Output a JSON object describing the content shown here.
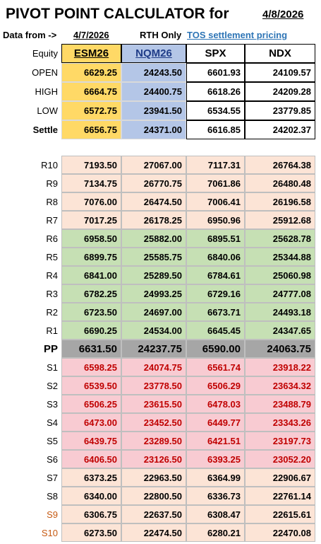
{
  "header": {
    "title": "PIVOT POINT CALCULATOR for",
    "date": "4/8/2026"
  },
  "info": {
    "label": "Data from ->",
    "date": "4/7/2026",
    "session": "RTH Only",
    "source": "TOS settlement pricing"
  },
  "table": {
    "columns": [
      "Equity",
      "ESM26",
      "NQM26",
      "SPX",
      "NDX"
    ],
    "quotes": [
      [
        "OPEN",
        "6629.25",
        "24243.50",
        "6601.93",
        "24109.57"
      ],
      [
        "HIGH",
        "6664.75",
        "24400.75",
        "6618.26",
        "24209.28"
      ],
      [
        "LOW",
        "6572.75",
        "23941.50",
        "6534.55",
        "23779.85"
      ],
      [
        "Settle",
        "6656.75",
        "24371.00",
        "6616.85",
        "24202.37"
      ]
    ],
    "levels": [
      [
        "R10",
        "7193.50",
        "27067.00",
        "7117.31",
        "26764.38"
      ],
      [
        "R9",
        "7134.75",
        "26770.75",
        "7061.86",
        "26480.48"
      ],
      [
        "R8",
        "7076.00",
        "26474.50",
        "7006.41",
        "26196.58"
      ],
      [
        "R7",
        "7017.25",
        "26178.25",
        "6950.96",
        "25912.68"
      ],
      [
        "R6",
        "6958.50",
        "25882.00",
        "6895.51",
        "25628.78"
      ],
      [
        "R5",
        "6899.75",
        "25585.75",
        "6840.06",
        "25344.88"
      ],
      [
        "R4",
        "6841.00",
        "25289.50",
        "6784.61",
        "25060.98"
      ],
      [
        "R3",
        "6782.25",
        "24993.25",
        "6729.16",
        "24777.08"
      ],
      [
        "R2",
        "6723.50",
        "24697.00",
        "6673.71",
        "24493.18"
      ],
      [
        "R1",
        "6690.25",
        "24534.00",
        "6645.45",
        "24347.65"
      ],
      [
        "PP",
        "6631.50",
        "24237.75",
        "6590.00",
        "24063.75"
      ],
      [
        "S1",
        "6598.25",
        "24074.75",
        "6561.74",
        "23918.22"
      ],
      [
        "S2",
        "6539.50",
        "23778.50",
        "6506.29",
        "23634.32"
      ],
      [
        "S3",
        "6506.25",
        "23615.50",
        "6478.03",
        "23488.79"
      ],
      [
        "S4",
        "6473.00",
        "23452.50",
        "6449.77",
        "23343.26"
      ],
      [
        "S5",
        "6439.75",
        "23289.50",
        "6421.51",
        "23197.73"
      ],
      [
        "S6",
        "6406.50",
        "23126.50",
        "6393.25",
        "23052.20"
      ],
      [
        "S7",
        "6373.25",
        "22963.50",
        "6364.99",
        "22906.67"
      ],
      [
        "S8",
        "6340.00",
        "22800.50",
        "6336.73",
        "22761.14"
      ],
      [
        "S9",
        "6306.75",
        "22637.50",
        "6308.47",
        "22615.61"
      ],
      [
        "S10",
        "6273.50",
        "22474.50",
        "6280.21",
        "22470.08"
      ]
    ]
  }
}
